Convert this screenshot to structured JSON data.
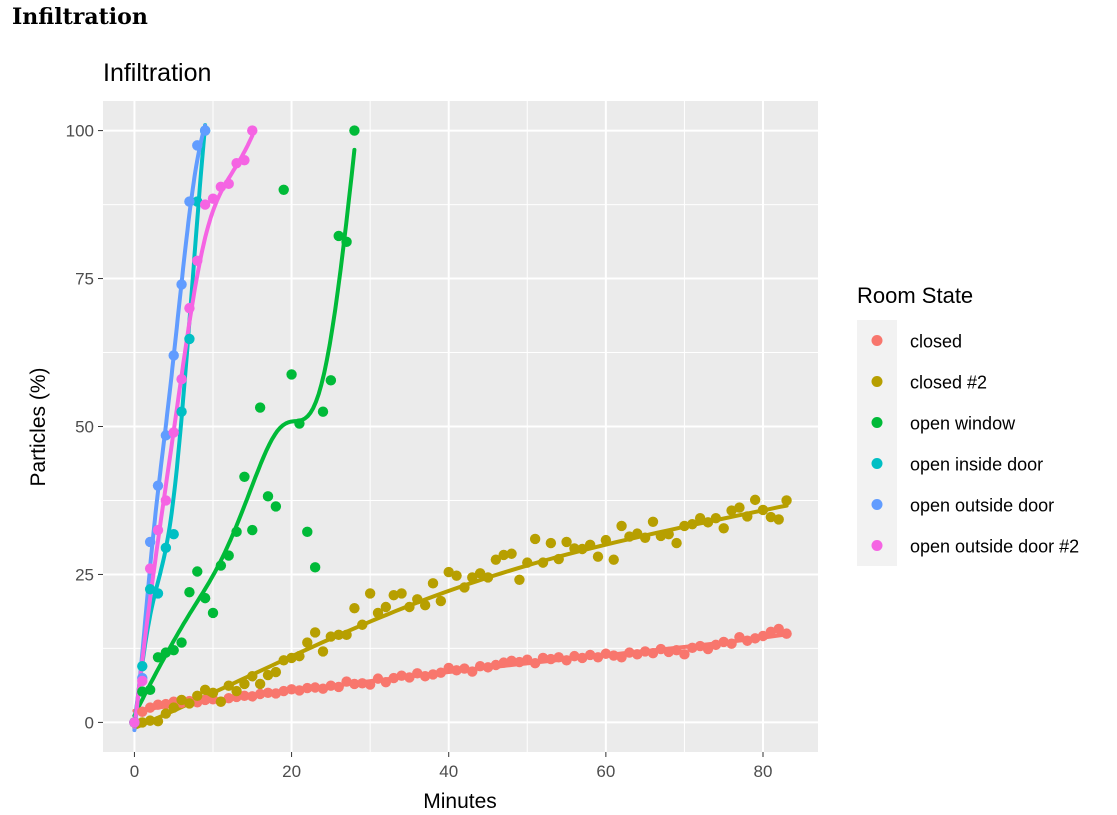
{
  "document": {
    "heading": "Infiltration"
  },
  "chart_data": {
    "type": "scatter",
    "title": "Infiltration",
    "xlabel": "Minutes",
    "ylabel": "Particles (%)",
    "xlim": [
      -4,
      87
    ],
    "ylim": [
      -5,
      105
    ],
    "xticks": [
      0,
      20,
      40,
      60,
      80
    ],
    "yticks": [
      0,
      25,
      50,
      75,
      100
    ],
    "grid": true,
    "legend": {
      "title": "Room State",
      "position": "right"
    },
    "series": [
      {
        "name": "closed",
        "color": "#F8766D",
        "x": [
          0,
          1,
          2,
          3,
          4,
          5,
          6,
          7,
          8,
          9,
          10,
          11,
          12,
          13,
          14,
          15,
          16,
          17,
          18,
          19,
          20,
          21,
          22,
          23,
          24,
          25,
          26,
          27,
          28,
          29,
          30,
          31,
          32,
          33,
          34,
          35,
          36,
          37,
          38,
          39,
          40,
          41,
          42,
          43,
          44,
          45,
          46,
          47,
          48,
          49,
          50,
          51,
          52,
          53,
          54,
          55,
          56,
          57,
          58,
          59,
          60,
          61,
          62,
          63,
          64,
          65,
          66,
          67,
          68,
          69,
          70,
          71,
          72,
          73,
          74,
          75,
          76,
          77,
          78,
          79,
          80,
          81,
          82,
          83
        ],
        "y": [
          0,
          1.8,
          2.5,
          3.0,
          3.1,
          3.5,
          3.3,
          3.6,
          3.4,
          3.8,
          3.9,
          3.5,
          4.1,
          4.3,
          4.5,
          4.4,
          4.8,
          5.0,
          4.9,
          5.3,
          5.6,
          5.4,
          5.8,
          5.9,
          5.7,
          6.2,
          6.0,
          6.9,
          6.5,
          6.6,
          6.4,
          7.4,
          6.8,
          7.5,
          7.9,
          7.6,
          8.3,
          7.8,
          8.1,
          8.4,
          9.2,
          8.8,
          9.1,
          8.6,
          9.5,
          9.3,
          9.7,
          10.1,
          10.4,
          10.2,
          10.6,
          10.0,
          10.9,
          10.7,
          11.0,
          10.5,
          11.2,
          10.9,
          11.4,
          11.0,
          11.6,
          11.3,
          11.0,
          11.8,
          11.5,
          12.0,
          11.7,
          12.4,
          11.9,
          12.2,
          11.5,
          12.6,
          12.9,
          12.4,
          13.1,
          13.6,
          13.3,
          14.4,
          13.8,
          14.2,
          14.6,
          15.3,
          15.8,
          15.0
        ]
      },
      {
        "name": "closed #2",
        "color": "#B79F00",
        "x": [
          0,
          1,
          2,
          3,
          4,
          5,
          6,
          7,
          8,
          9,
          10,
          11,
          12,
          13,
          14,
          15,
          16,
          17,
          18,
          19,
          20,
          21,
          22,
          23,
          24,
          25,
          26,
          27,
          28,
          29,
          30,
          31,
          32,
          33,
          34,
          35,
          36,
          37,
          38,
          39,
          40,
          41,
          42,
          43,
          44,
          45,
          46,
          47,
          48,
          49,
          50,
          51,
          52,
          53,
          54,
          55,
          56,
          57,
          58,
          59,
          60,
          61,
          62,
          63,
          64,
          65,
          66,
          67,
          68,
          69,
          70,
          71,
          72,
          73,
          74,
          75,
          76,
          77,
          78,
          79,
          80,
          81,
          82,
          83
        ],
        "y": [
          0,
          0,
          0.3,
          0.2,
          1.5,
          2.5,
          3.8,
          3.2,
          4.5,
          5.5,
          5.0,
          3.5,
          6.2,
          5.3,
          6.5,
          7.8,
          6.5,
          8.0,
          8.5,
          10.5,
          10.9,
          11.2,
          13.5,
          15.2,
          12.0,
          14.5,
          14.8,
          14.8,
          19.3,
          16.5,
          21.8,
          18.5,
          19.5,
          21.5,
          21.8,
          19.5,
          20.8,
          19.8,
          23.5,
          20.5,
          25.4,
          24.8,
          22.8,
          24.5,
          25.2,
          24.5,
          27.5,
          28.3,
          28.5,
          24.1,
          27.0,
          31.0,
          27.0,
          30.3,
          27.6,
          30.5,
          29.4,
          29.3,
          30.0,
          28.0,
          30.8,
          27.5,
          33.2,
          31.4,
          31.9,
          31.2,
          33.9,
          31.5,
          31.8,
          30.3,
          33.2,
          33.5,
          34.5,
          33.8,
          34.5,
          32.8,
          35.8,
          36.3,
          34.8,
          37.6,
          35.9,
          34.7,
          34.3,
          37.5
        ]
      },
      {
        "name": "open window",
        "color": "#00BA38",
        "x": [
          0,
          1,
          2,
          3,
          4,
          5,
          6,
          7,
          8,
          9,
          10,
          11,
          12,
          13,
          14,
          15,
          16,
          17,
          18,
          19,
          20,
          21,
          22,
          23,
          24,
          25,
          26,
          27,
          28
        ],
        "y": [
          0,
          5.2,
          5.5,
          11.0,
          11.8,
          12.2,
          13.5,
          22.0,
          25.5,
          21.0,
          18.5,
          26.5,
          28.2,
          32.2,
          41.5,
          32.5,
          53.2,
          38.2,
          36.5,
          90.0,
          58.8,
          50.5,
          32.2,
          26.2,
          52.5,
          57.8,
          82.2,
          81.2,
          100
        ]
      },
      {
        "name": "open inside door",
        "color": "#00BFC4",
        "x": [
          0,
          1,
          2,
          3,
          4,
          5,
          6,
          7,
          8,
          9
        ],
        "y": [
          0,
          9.5,
          22.5,
          21.8,
          29.5,
          31.8,
          52.5,
          64.8,
          88.0,
          100
        ]
      },
      {
        "name": "open outside door",
        "color": "#619CFF",
        "x": [
          0,
          1,
          2,
          3,
          4,
          5,
          6,
          7,
          8,
          9
        ],
        "y": [
          0,
          7.5,
          30.5,
          40.0,
          48.5,
          62.0,
          74.0,
          88.0,
          97.5,
          100
        ]
      },
      {
        "name": "open outside door #2",
        "color": "#F564E3",
        "x": [
          0,
          1,
          2,
          3,
          4,
          5,
          6,
          7,
          8,
          9,
          10,
          11,
          12,
          13,
          14,
          15
        ],
        "y": [
          0,
          7.0,
          26.0,
          32.5,
          37.5,
          49.0,
          58.0,
          70.0,
          78.0,
          87.5,
          88.5,
          90.5,
          91.0,
          94.5,
          95.0,
          100
        ]
      }
    ]
  }
}
